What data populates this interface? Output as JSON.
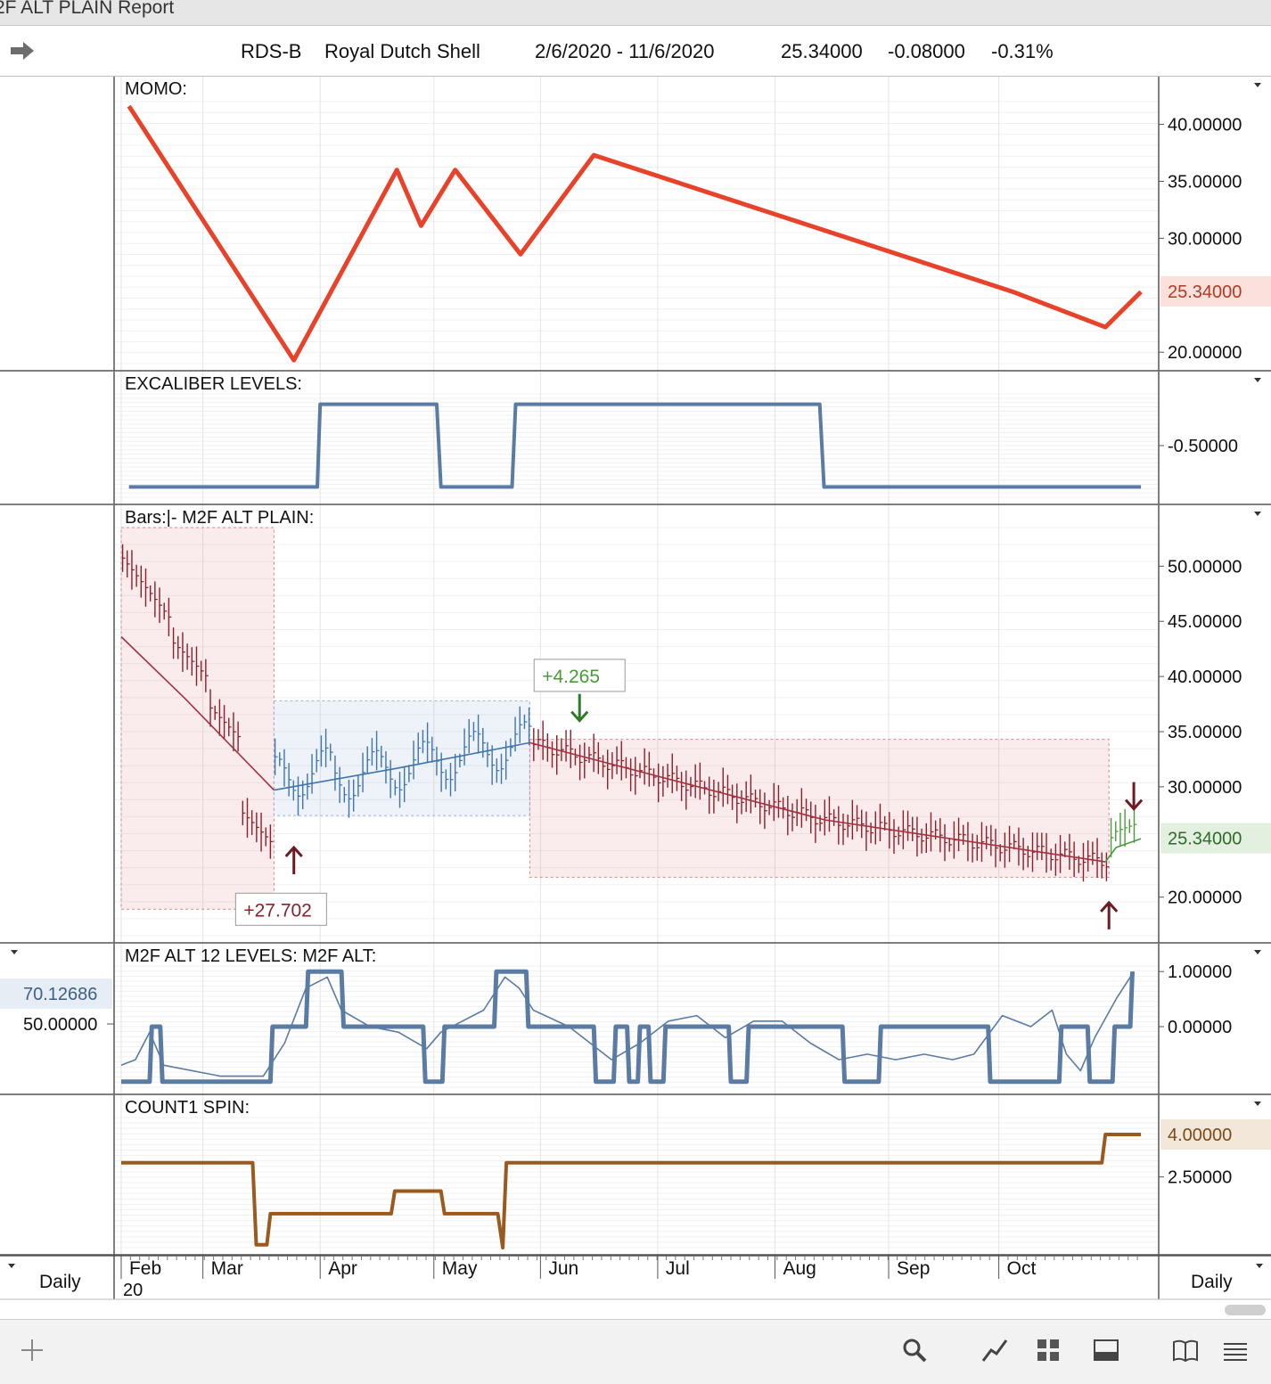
{
  "window": {
    "title": "2F ALT PLAIN Report"
  },
  "header": {
    "symbol": "RDS-B",
    "name": "Royal Dutch Shell",
    "range": "2/6/2020 - 11/6/2020",
    "last": "25.34000",
    "change": "-0.08000",
    "change_pct": "-0.31%"
  },
  "toolbar": {
    "left_icon": "plus-icon",
    "icons": [
      "search-icon",
      "draw-icon",
      "grid-icon",
      "panel-icon",
      "book-icon",
      "menu-icon"
    ]
  },
  "footer": {
    "period_left": "Daily",
    "period_right": "Daily",
    "year_label": "20"
  },
  "colors": {
    "momo": "#e8432a",
    "levels": "#5a7ba3",
    "bull_bar": "#3f74ad",
    "bear_bar": "#8b1f2a",
    "avg_line": "#a43040",
    "count": "#9a5a1f",
    "green": "#4a9a3a",
    "grid": "#e4e4e4"
  },
  "chart_data": [
    {
      "id": "momo",
      "type": "line",
      "title": "MOMO:",
      "ylim": [
        19,
        42
      ],
      "yticks": [
        "40.00000",
        "35.00000",
        "30.00000",
        "20.00000"
      ],
      "yticks_values": [
        40,
        35,
        30,
        20
      ],
      "last_label": "25.34000",
      "last_value": 25.34,
      "series": [
        {
          "values": [
            [
              2.1,
              41.6
            ],
            [
              25.3,
              19.3
            ],
            [
              39.8,
              36.0
            ],
            [
              43.2,
              31.1
            ],
            [
              48.0,
              36.0
            ],
            [
              57.2,
              28.6
            ],
            [
              67.5,
              37.3
            ],
            [
              126.5,
              25.3
            ],
            [
              139.5,
              22.2
            ],
            [
              144.5,
              25.3
            ]
          ]
        }
      ]
    },
    {
      "id": "excaliber",
      "type": "line",
      "title": "EXCALIBER LEVELS:",
      "ylim": [
        -1.0,
        0.0
      ],
      "yticks": [
        "-0.50000"
      ],
      "yticks_values": [
        -0.5
      ],
      "series": [
        {
          "values": [
            [
              2.1,
              -0.9
            ],
            [
              28.6,
              -0.9
            ],
            [
              29.0,
              -0.1
            ],
            [
              45.4,
              -0.1
            ],
            [
              46.0,
              -0.9
            ],
            [
              56.0,
              -0.9
            ],
            [
              56.5,
              -0.1
            ],
            [
              99.3,
              -0.1
            ],
            [
              99.9,
              -0.9
            ],
            [
              144.5,
              -0.9
            ]
          ]
        }
      ]
    },
    {
      "id": "bars",
      "type": "line",
      "title": "Bars:|-  M2F ALT PLAIN:",
      "ylim": [
        16.5,
        53.5
      ],
      "yticks": [
        "50.00000",
        "45.00000",
        "40.00000",
        "35.00000",
        "30.00000",
        "20.00000"
      ],
      "yticks_values": [
        50,
        45,
        40,
        35,
        30,
        20
      ],
      "last_label": "25.34000",
      "last_value": 25.34,
      "annotations": [
        {
          "text": "+27.702",
          "x": 23.5,
          "y": 18.9
        },
        {
          "text": "+4.265",
          "x": 65.5,
          "y": 40.1
        }
      ],
      "signal_arrows": [
        {
          "direction": "up",
          "x": 25.3,
          "y": 24.5,
          "color": "bear"
        },
        {
          "direction": "down",
          "x": 65.5,
          "y": 36.0,
          "color": "green"
        },
        {
          "direction": "down",
          "x": 143.5,
          "y": 28.0,
          "color": "bear"
        },
        {
          "direction": "up",
          "x": 140.0,
          "y": 19.5,
          "color": "bear"
        }
      ],
      "regions": [
        {
          "x0": 1.0,
          "x1": 22.5,
          "y0": 18.9,
          "y1": 53.5,
          "kind": "bear"
        },
        {
          "x0": 22.5,
          "x1": 58.5,
          "y0": 27.4,
          "y1": 37.8,
          "kind": "bull"
        },
        {
          "x0": 58.5,
          "x1": 140.0,
          "y0": 21.8,
          "y1": 34.3,
          "kind": "bear"
        }
      ],
      "series": [
        {
          "values": [
            [
              1.0,
              43.6
            ],
            [
              10.0,
              38.0
            ],
            [
              22.5,
              29.7
            ]
          ]
        },
        {
          "values": [
            [
              22.5,
              29.7
            ],
            [
              40.0,
              31.7
            ],
            [
              58.5,
              34.0
            ]
          ]
        },
        {
          "values": [
            [
              58.5,
              34.0
            ],
            [
              100.0,
              27.0
            ],
            [
              139.5,
              23.2
            ]
          ]
        },
        {
          "values": [
            [
              139.5,
              23.2
            ],
            [
              141.0,
              24.5
            ],
            [
              144.5,
              25.3
            ]
          ]
        }
      ]
    },
    {
      "id": "m2f_levels",
      "type": "line",
      "title": "M2F ALT 12 LEVELS:    M2F ALT:",
      "ylim": [
        -1.1,
        1.1
      ],
      "yticks": [
        "1.00000",
        "0.00000"
      ],
      "yticks_values": [
        1,
        0
      ],
      "left_labels": [
        "70.12686",
        "50.00000"
      ],
      "series": [
        {
          "values": [
            [
              1,
              -1
            ],
            [
              5,
              -1
            ],
            [
              5.3,
              0
            ],
            [
              6.5,
              0
            ],
            [
              6.8,
              -1
            ],
            [
              22,
              -1
            ],
            [
              22.3,
              0
            ],
            [
              27,
              0
            ],
            [
              27.3,
              1
            ],
            [
              32,
              1
            ],
            [
              32.3,
              0
            ],
            [
              43.5,
              0
            ],
            [
              43.8,
              -1
            ],
            [
              46.2,
              -1
            ],
            [
              46.5,
              0
            ],
            [
              53.5,
              0
            ],
            [
              53.8,
              1
            ],
            [
              58,
              1
            ],
            [
              58.3,
              0
            ],
            [
              67.5,
              0
            ],
            [
              67.8,
              -1
            ],
            [
              70.3,
              -1
            ],
            [
              70.6,
              0
            ],
            [
              72.2,
              0
            ],
            [
              72.5,
              -1
            ],
            [
              73.7,
              -1
            ],
            [
              74,
              0
            ],
            [
              75.2,
              0
            ],
            [
              75.5,
              -1
            ],
            [
              77.3,
              -1
            ],
            [
              77.6,
              0
            ],
            [
              86.5,
              0
            ],
            [
              86.8,
              -1
            ],
            [
              89,
              -1
            ],
            [
              89.3,
              0
            ],
            [
              102.5,
              0
            ],
            [
              102.8,
              -1
            ],
            [
              107.6,
              -1
            ],
            [
              107.9,
              0
            ],
            [
              123,
              0
            ],
            [
              123.3,
              -1
            ],
            [
              133,
              -1
            ],
            [
              133.3,
              0
            ],
            [
              137,
              0
            ],
            [
              137.3,
              -1
            ],
            [
              140.5,
              -1
            ],
            [
              140.8,
              0
            ],
            [
              143,
              0
            ],
            [
              143.3,
              1
            ]
          ]
        },
        {
          "values": [
            [
              1,
              -0.7
            ],
            [
              3,
              -0.6
            ],
            [
              5,
              -0.1
            ],
            [
              7,
              -0.7
            ],
            [
              15,
              -0.9
            ],
            [
              21,
              -0.9
            ],
            [
              24,
              -0.3
            ],
            [
              27,
              0.7
            ],
            [
              30,
              0.9
            ],
            [
              32,
              0.3
            ],
            [
              36,
              0.0
            ],
            [
              40,
              -0.1
            ],
            [
              44,
              -0.4
            ],
            [
              46,
              -0.1
            ],
            [
              52,
              0.3
            ],
            [
              55,
              0.9
            ],
            [
              57,
              0.7
            ],
            [
              59,
              0.3
            ],
            [
              64,
              0.0
            ],
            [
              67,
              -0.3
            ],
            [
              70,
              -0.6
            ],
            [
              74,
              -0.3
            ],
            [
              78,
              0.1
            ],
            [
              82,
              0.2
            ],
            [
              86,
              -0.2
            ],
            [
              90,
              0.1
            ],
            [
              94,
              0.1
            ],
            [
              98,
              -0.3
            ],
            [
              102,
              -0.6
            ],
            [
              106,
              -0.5
            ],
            [
              110,
              -0.6
            ],
            [
              114,
              -0.5
            ],
            [
              118,
              -0.6
            ],
            [
              121,
              -0.5
            ],
            [
              125,
              0.2
            ],
            [
              129,
              0.0
            ],
            [
              132,
              0.3
            ],
            [
              134,
              -0.5
            ],
            [
              136,
              -0.8
            ],
            [
              138,
              -0.2
            ],
            [
              141,
              0.5
            ],
            [
              143.5,
              1.0
            ]
          ]
        }
      ]
    },
    {
      "id": "count1",
      "type": "line",
      "title": "COUNT1 SPIN:",
      "ylim": [
        0,
        4.6
      ],
      "yticks": [
        "2.50000"
      ],
      "yticks_values": [
        2.5
      ],
      "last_label": "4.00000",
      "last_value": 4.0,
      "series": [
        {
          "values": [
            [
              1,
              3
            ],
            [
              19.5,
              3
            ],
            [
              20,
              0.1
            ],
            [
              21.5,
              0.1
            ],
            [
              22,
              1.2
            ],
            [
              39,
              1.2
            ],
            [
              39.5,
              2.0
            ],
            [
              46,
              2.0
            ],
            [
              46.5,
              1.2
            ],
            [
              54,
              1.2
            ],
            [
              54.7,
              0.0
            ],
            [
              55.2,
              3
            ],
            [
              139,
              3
            ],
            [
              139.5,
              4
            ],
            [
              144.5,
              4
            ]
          ]
        }
      ]
    }
  ],
  "x_axis": {
    "months": [
      {
        "label": "Feb",
        "x": 1.0
      },
      {
        "label": "Mar",
        "x": 12.5
      },
      {
        "label": "Apr",
        "x": 29.0
      },
      {
        "label": "May",
        "x": 45.0
      },
      {
        "label": "Jun",
        "x": 60.0
      },
      {
        "label": "Jul",
        "x": 76.5
      },
      {
        "label": "Aug",
        "x": 93.0
      },
      {
        "label": "Sep",
        "x": 109.0
      },
      {
        "label": "Oct",
        "x": 124.5
      }
    ],
    "xlim": [
      0,
      147
    ]
  }
}
